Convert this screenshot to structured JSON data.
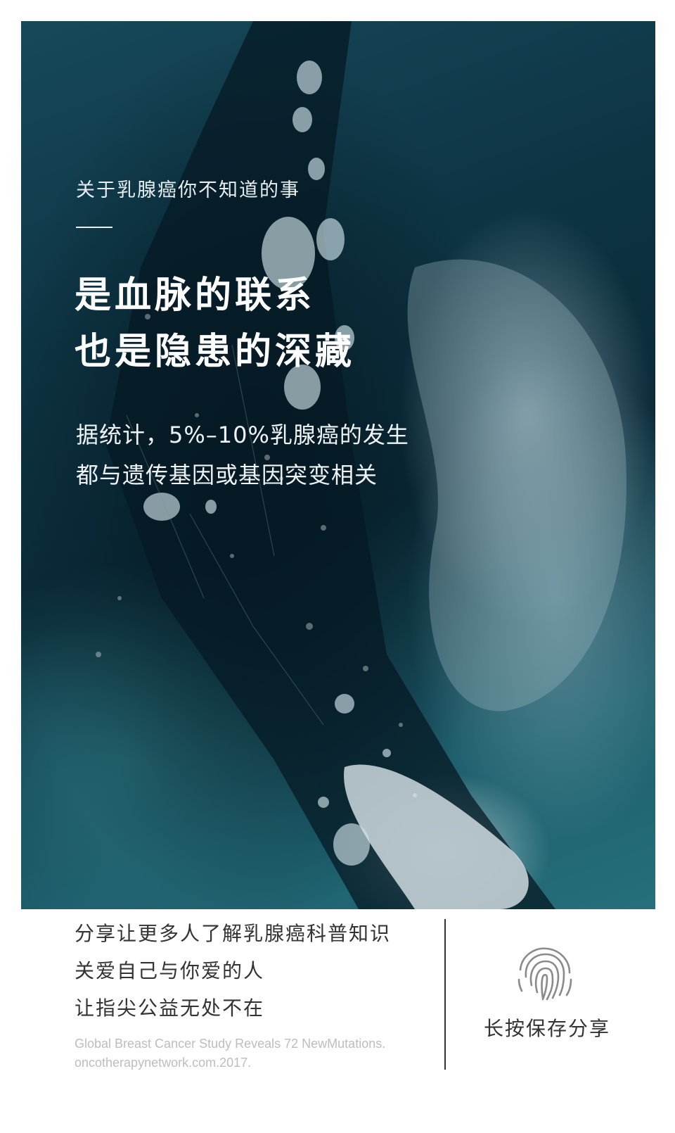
{
  "poster": {
    "subtitle": "关于乳腺癌你不知道的事",
    "headline_line1": "是血脉的联系",
    "headline_line2": "也是隐患的深藏",
    "desc_line1": "据统计，5%–10%乳腺癌的发生",
    "desc_line2": "都与遗传基因或基因突变相关",
    "background_image": "abstract blue ice texture"
  },
  "footer": {
    "share_line1": "分享让更多人了解乳腺癌科普知识",
    "share_line2": "关爱自己与你爱的人",
    "share_line3": "让指尖公益无处不在",
    "source_line1": "Global Breast Cancer Study Reveals 72 NewMutations.",
    "source_line2": "oncotherapynetwork.com.2017.",
    "save_label": "长按保存分享",
    "fingerprint_icon": "fingerprint-icon"
  }
}
